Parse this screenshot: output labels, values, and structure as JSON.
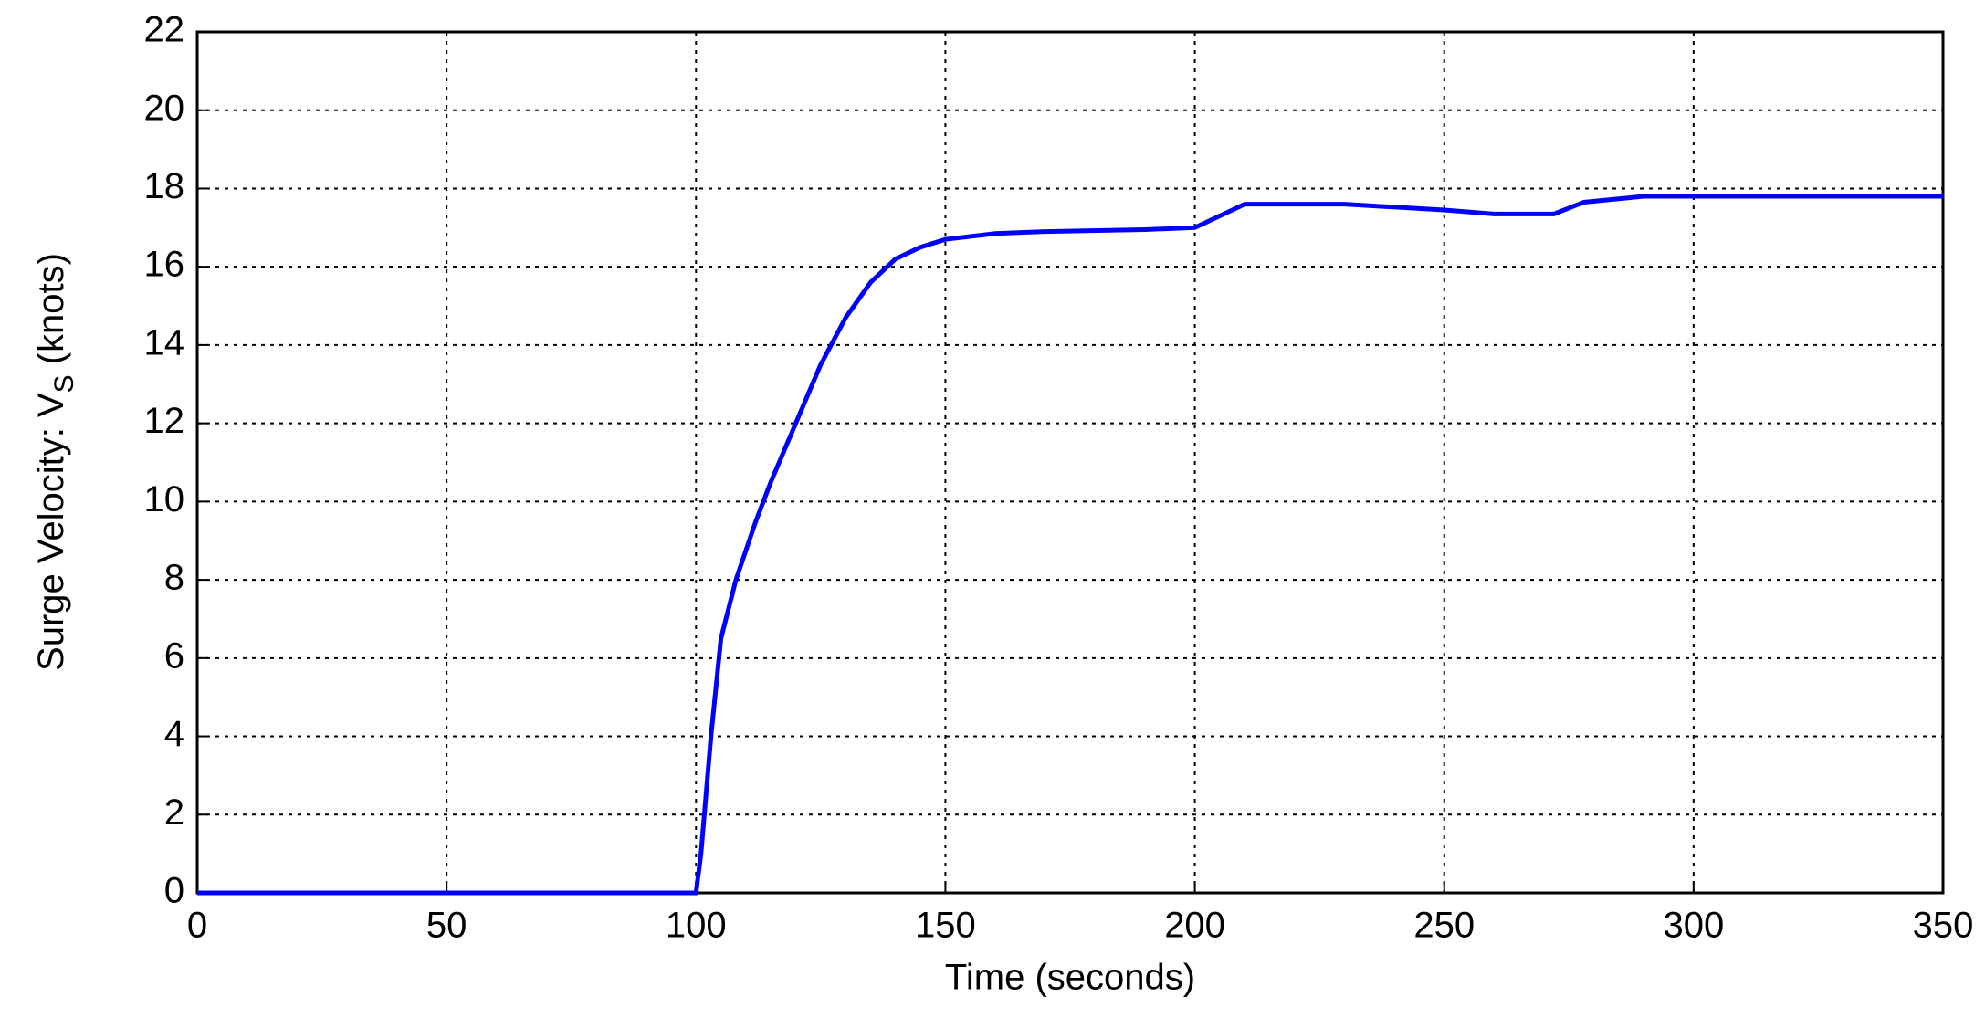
{
  "chart_data": {
    "type": "line",
    "xlabel": "Time (seconds)",
    "ylabel_parts": [
      "Surge Velocity: V",
      "S",
      " (knots)"
    ],
    "x": [
      0,
      100,
      101,
      103,
      105,
      108,
      112,
      115,
      120,
      125,
      130,
      135,
      140,
      145,
      150,
      160,
      170,
      190,
      200,
      205,
      210,
      230,
      250,
      260,
      272,
      278,
      290,
      350
    ],
    "series": [
      {
        "color": "#0000ff",
        "values": [
          0,
          0,
          1,
          4,
          6.5,
          8,
          9.5,
          10.5,
          12,
          13.5,
          14.7,
          15.6,
          16.2,
          16.5,
          16.7,
          16.85,
          16.9,
          16.95,
          17,
          17.3,
          17.6,
          17.6,
          17.45,
          17.35,
          17.35,
          17.65,
          17.8,
          17.8
        ]
      }
    ],
    "xlim": [
      0,
      350
    ],
    "xticks": [
      0,
      50,
      100,
      150,
      200,
      250,
      300,
      350
    ],
    "ylim": [
      0,
      22
    ],
    "yticks": [
      0,
      2,
      4,
      6,
      8,
      10,
      12,
      14,
      16,
      18,
      20,
      22
    ],
    "grid": true,
    "label_color": "#b8651c"
  }
}
